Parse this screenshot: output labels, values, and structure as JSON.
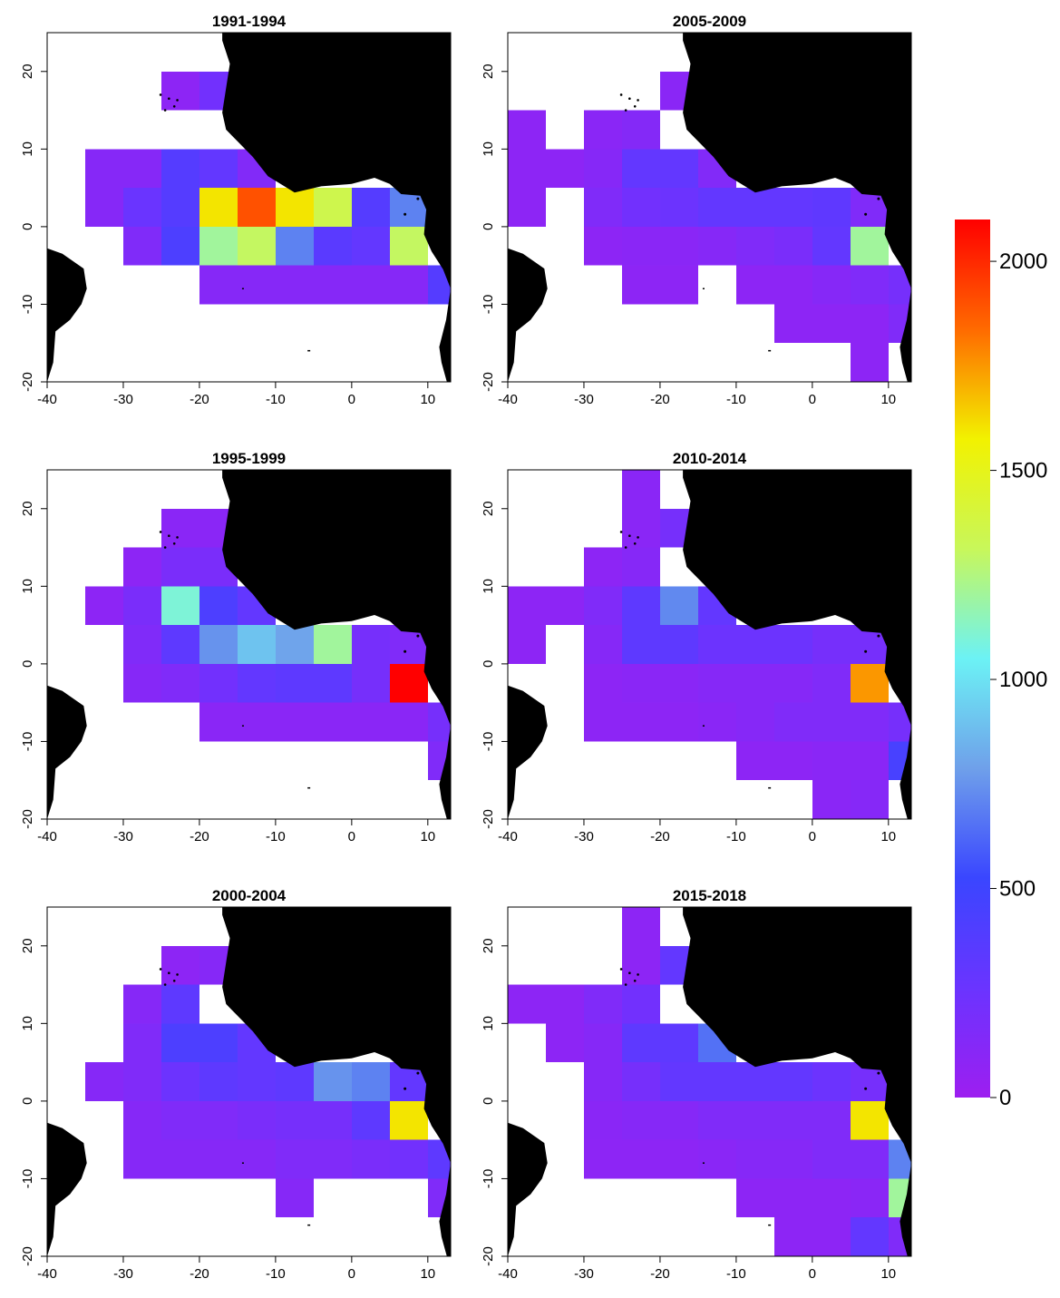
{
  "figure": {
    "legend": {
      "min": 0,
      "max": 2100,
      "ticks": [
        "0",
        "500",
        "1000",
        "1500",
        "2000"
      ],
      "colors": [
        "#9d1ef0",
        "#6a34ff",
        "#3a46ff",
        "#6fa0ea",
        "#6cf2f5",
        "#c8f75a",
        "#f2f200",
        "#ff6a00",
        "#ff0000"
      ]
    },
    "axes": {
      "x_ticks": [
        "-40",
        "-30",
        "-20",
        "-10",
        "0",
        "10"
      ],
      "y_ticks": [
        "-20",
        "-10",
        "0",
        "10",
        "20"
      ],
      "xlim": [
        -40,
        13
      ],
      "ylim": [
        -20,
        25
      ]
    },
    "panels": [
      {
        "title": "1991-1994"
      },
      {
        "title": "2005-2009"
      },
      {
        "title": "1995-1999"
      },
      {
        "title": "2010-2014"
      },
      {
        "title": "2000-2004"
      },
      {
        "title": "2015-2018"
      }
    ]
  },
  "chart_data": [
    {
      "type": "heatmap",
      "title": "1991-1994",
      "cell_size_deg": 5,
      "xlim": [
        -40,
        13
      ],
      "ylim": [
        -20,
        25
      ],
      "cells": [
        [
          -25,
          15,
          80
        ],
        [
          -20,
          15,
          220
        ],
        [
          -35,
          5,
          120
        ],
        [
          -30,
          5,
          120
        ],
        [
          -25,
          5,
          380
        ],
        [
          -20,
          5,
          300
        ],
        [
          -15,
          5,
          140
        ],
        [
          -35,
          0,
          120
        ],
        [
          -30,
          0,
          260
        ],
        [
          -25,
          0,
          380
        ],
        [
          -20,
          0,
          1600
        ],
        [
          -15,
          0,
          1900
        ],
        [
          -10,
          0,
          1600
        ],
        [
          -5,
          0,
          1350
        ],
        [
          0,
          0,
          380
        ],
        [
          5,
          0,
          700
        ],
        [
          -30,
          -5,
          150
        ],
        [
          -25,
          -5,
          420
        ],
        [
          -20,
          -5,
          1200
        ],
        [
          -15,
          -5,
          1300
        ],
        [
          -10,
          -5,
          700
        ],
        [
          -5,
          -5,
          350
        ],
        [
          0,
          -5,
          300
        ],
        [
          5,
          -5,
          1300
        ],
        [
          -20,
          -10,
          120
        ],
        [
          -15,
          -10,
          120
        ],
        [
          -10,
          -10,
          120
        ],
        [
          -5,
          -10,
          120
        ],
        [
          0,
          -10,
          120
        ],
        [
          5,
          -10,
          120
        ],
        [
          10,
          -10,
          380
        ]
      ]
    },
    {
      "type": "heatmap",
      "title": "2005-2009",
      "cell_size_deg": 5,
      "xlim": [
        -40,
        13
      ],
      "ylim": [
        -20,
        25
      ],
      "cells": [
        [
          -20,
          15,
          100
        ],
        [
          -15,
          15,
          100
        ],
        [
          -40,
          10,
          80
        ],
        [
          -30,
          10,
          100
        ],
        [
          -25,
          10,
          130
        ],
        [
          -40,
          5,
          80
        ],
        [
          -35,
          5,
          80
        ],
        [
          -30,
          5,
          120
        ],
        [
          -25,
          5,
          300
        ],
        [
          -20,
          5,
          300
        ],
        [
          -15,
          5,
          140
        ],
        [
          -40,
          0,
          80
        ],
        [
          -30,
          0,
          150
        ],
        [
          -25,
          0,
          220
        ],
        [
          -20,
          0,
          250
        ],
        [
          -15,
          0,
          300
        ],
        [
          -10,
          0,
          300
        ],
        [
          -5,
          0,
          300
        ],
        [
          0,
          0,
          320
        ],
        [
          5,
          0,
          150
        ],
        [
          -30,
          -5,
          80
        ],
        [
          -25,
          -5,
          100
        ],
        [
          -20,
          -5,
          100
        ],
        [
          -15,
          -5,
          120
        ],
        [
          -10,
          -5,
          150
        ],
        [
          -5,
          -5,
          180
        ],
        [
          0,
          -5,
          300
        ],
        [
          5,
          -5,
          1200
        ],
        [
          -25,
          -10,
          80
        ],
        [
          -20,
          -10,
          80
        ],
        [
          -10,
          -10,
          80
        ],
        [
          -5,
          -10,
          80
        ],
        [
          0,
          -10,
          120
        ],
        [
          5,
          -10,
          150
        ],
        [
          10,
          -10,
          200
        ],
        [
          -5,
          -15,
          80
        ],
        [
          0,
          -15,
          80
        ],
        [
          5,
          -15,
          80
        ],
        [
          10,
          -15,
          150
        ],
        [
          5,
          -20,
          80
        ]
      ]
    },
    {
      "type": "heatmap",
      "title": "1995-1999",
      "cell_size_deg": 5,
      "xlim": [
        -40,
        13
      ],
      "ylim": [
        -20,
        25
      ],
      "cells": [
        [
          -25,
          15,
          100
        ],
        [
          -20,
          15,
          100
        ],
        [
          -30,
          10,
          80
        ],
        [
          -25,
          10,
          180
        ],
        [
          -20,
          10,
          180
        ],
        [
          -35,
          5,
          80
        ],
        [
          -30,
          5,
          180
        ],
        [
          -25,
          5,
          1100
        ],
        [
          -20,
          5,
          420
        ],
        [
          -15,
          5,
          300
        ],
        [
          -30,
          0,
          150
        ],
        [
          -25,
          0,
          330
        ],
        [
          -20,
          0,
          750
        ],
        [
          -15,
          0,
          900
        ],
        [
          -10,
          0,
          800
        ],
        [
          -5,
          0,
          1200
        ],
        [
          0,
          0,
          200
        ],
        [
          5,
          0,
          150
        ],
        [
          -30,
          -5,
          120
        ],
        [
          -25,
          -5,
          150
        ],
        [
          -20,
          -5,
          220
        ],
        [
          -15,
          -5,
          300
        ],
        [
          -10,
          -5,
          330
        ],
        [
          -5,
          -5,
          330
        ],
        [
          0,
          -5,
          200
        ],
        [
          5,
          -5,
          2100
        ],
        [
          -20,
          -10,
          100
        ],
        [
          -15,
          -10,
          100
        ],
        [
          -10,
          -10,
          100
        ],
        [
          -5,
          -10,
          100
        ],
        [
          0,
          -10,
          100
        ],
        [
          5,
          -10,
          100
        ],
        [
          10,
          -10,
          200
        ],
        [
          10,
          -15,
          150
        ]
      ]
    },
    {
      "type": "heatmap",
      "title": "2010-2014",
      "cell_size_deg": 5,
      "xlim": [
        -40,
        13
      ],
      "ylim": [
        -20,
        25
      ],
      "cells": [
        [
          -25,
          20,
          100
        ],
        [
          -25,
          15,
          100
        ],
        [
          -20,
          15,
          200
        ],
        [
          -30,
          10,
          80
        ],
        [
          -25,
          10,
          120
        ],
        [
          -40,
          5,
          80
        ],
        [
          -35,
          5,
          80
        ],
        [
          -30,
          5,
          150
        ],
        [
          -25,
          5,
          330
        ],
        [
          -20,
          5,
          720
        ],
        [
          -15,
          5,
          300
        ],
        [
          -40,
          0,
          80
        ],
        [
          -30,
          0,
          120
        ],
        [
          -25,
          0,
          330
        ],
        [
          -20,
          0,
          330
        ],
        [
          -15,
          0,
          250
        ],
        [
          -10,
          0,
          250
        ],
        [
          -5,
          0,
          250
        ],
        [
          0,
          0,
          200
        ],
        [
          5,
          0,
          200
        ],
        [
          -30,
          -5,
          80
        ],
        [
          -25,
          -5,
          100
        ],
        [
          -20,
          -5,
          100
        ],
        [
          -15,
          -5,
          120
        ],
        [
          -10,
          -5,
          120
        ],
        [
          -5,
          -5,
          120
        ],
        [
          0,
          -5,
          150
        ],
        [
          5,
          -5,
          1750
        ],
        [
          -30,
          -10,
          80
        ],
        [
          -25,
          -10,
          80
        ],
        [
          -20,
          -10,
          80
        ],
        [
          -15,
          -10,
          100
        ],
        [
          -10,
          -10,
          120
        ],
        [
          -5,
          -10,
          150
        ],
        [
          0,
          -10,
          150
        ],
        [
          5,
          -10,
          150
        ],
        [
          10,
          -10,
          200
        ],
        [
          -10,
          -15,
          80
        ],
        [
          -5,
          -15,
          80
        ],
        [
          0,
          -15,
          100
        ],
        [
          5,
          -15,
          100
        ],
        [
          10,
          -15,
          450
        ],
        [
          0,
          -20,
          100
        ],
        [
          5,
          -20,
          120
        ]
      ]
    },
    {
      "type": "heatmap",
      "title": "2000-2004",
      "cell_size_deg": 5,
      "xlim": [
        -40,
        13
      ],
      "ylim": [
        -20,
        25
      ],
      "cells": [
        [
          -25,
          15,
          80
        ],
        [
          -20,
          15,
          120
        ],
        [
          -30,
          10,
          120
        ],
        [
          -25,
          10,
          330
        ],
        [
          -30,
          5,
          150
        ],
        [
          -25,
          5,
          420
        ],
        [
          -20,
          5,
          420
        ],
        [
          -15,
          5,
          300
        ],
        [
          -35,
          0,
          120
        ],
        [
          -30,
          0,
          150
        ],
        [
          -25,
          0,
          250
        ],
        [
          -20,
          0,
          330
        ],
        [
          -15,
          0,
          300
        ],
        [
          -10,
          0,
          330
        ],
        [
          -5,
          0,
          750
        ],
        [
          0,
          0,
          700
        ],
        [
          5,
          0,
          300
        ],
        [
          -30,
          -5,
          120
        ],
        [
          -25,
          -5,
          150
        ],
        [
          -20,
          -5,
          150
        ],
        [
          -15,
          -5,
          180
        ],
        [
          -10,
          -5,
          200
        ],
        [
          -5,
          -5,
          200
        ],
        [
          0,
          -5,
          330
        ],
        [
          5,
          -5,
          1600
        ],
        [
          -30,
          -10,
          120
        ],
        [
          -25,
          -10,
          120
        ],
        [
          -20,
          -10,
          120
        ],
        [
          -15,
          -10,
          120
        ],
        [
          -10,
          -10,
          150
        ],
        [
          -5,
          -10,
          150
        ],
        [
          0,
          -10,
          180
        ],
        [
          5,
          -10,
          220
        ],
        [
          10,
          -10,
          330
        ],
        [
          -10,
          -15,
          120
        ],
        [
          10,
          -15,
          150
        ]
      ]
    },
    {
      "type": "heatmap",
      "title": "2015-2018",
      "cell_size_deg": 5,
      "xlim": [
        -40,
        13
      ],
      "ylim": [
        -20,
        25
      ],
      "cells": [
        [
          -25,
          20,
          80
        ],
        [
          -25,
          15,
          80
        ],
        [
          -20,
          15,
          300
        ],
        [
          -40,
          10,
          80
        ],
        [
          -35,
          10,
          80
        ],
        [
          -30,
          10,
          150
        ],
        [
          -25,
          10,
          220
        ],
        [
          -35,
          5,
          80
        ],
        [
          -30,
          5,
          120
        ],
        [
          -25,
          5,
          330
        ],
        [
          -20,
          5,
          330
        ],
        [
          -15,
          5,
          650
        ],
        [
          -30,
          0,
          120
        ],
        [
          -25,
          0,
          200
        ],
        [
          -20,
          0,
          300
        ],
        [
          -15,
          0,
          300
        ],
        [
          -10,
          0,
          300
        ],
        [
          -5,
          0,
          300
        ],
        [
          0,
          0,
          250
        ],
        [
          5,
          0,
          200
        ],
        [
          -30,
          -5,
          100
        ],
        [
          -25,
          -5,
          120
        ],
        [
          -20,
          -5,
          120
        ],
        [
          -15,
          -5,
          150
        ],
        [
          -10,
          -5,
          150
        ],
        [
          -5,
          -5,
          150
        ],
        [
          0,
          -5,
          150
        ],
        [
          5,
          -5,
          1600
        ],
        [
          -30,
          -10,
          80
        ],
        [
          -25,
          -10,
          80
        ],
        [
          -20,
          -10,
          80
        ],
        [
          -15,
          -10,
          100
        ],
        [
          -10,
          -10,
          120
        ],
        [
          -5,
          -10,
          120
        ],
        [
          0,
          -10,
          150
        ],
        [
          5,
          -10,
          150
        ],
        [
          10,
          -10,
          700
        ],
        [
          -10,
          -15,
          80
        ],
        [
          -5,
          -15,
          80
        ],
        [
          0,
          -15,
          80
        ],
        [
          5,
          -15,
          100
        ],
        [
          10,
          -15,
          1200
        ],
        [
          -5,
          -20,
          80
        ],
        [
          0,
          -20,
          80
        ],
        [
          5,
          -20,
          300
        ],
        [
          10,
          -20,
          150
        ]
      ]
    }
  ]
}
